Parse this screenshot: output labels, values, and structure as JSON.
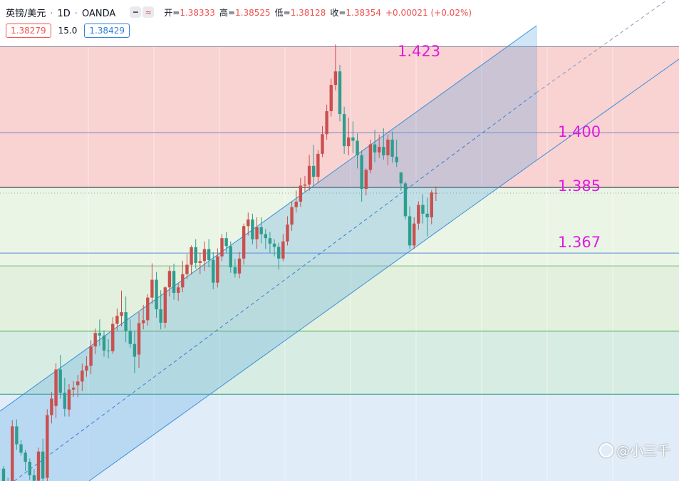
{
  "header": {
    "symbol": "英镑/美元",
    "sep1": "·",
    "timeframe": "1D",
    "sep2": "·",
    "broker": "OANDA",
    "open_label": "开=",
    "open": "1.38333",
    "high_label": "高=",
    "high": "1.38525",
    "low_label": "低=",
    "low": "1.38128",
    "close_label": "收=",
    "close": "1.38354",
    "change": "+0.00021 (+0.02%)"
  },
  "quote": {
    "bid": "1.38279",
    "spread": "15.0",
    "ask": "1.38429"
  },
  "levels": {
    "l1": "1.423",
    "l2": "1.400",
    "l3": "1.385",
    "l4": "1.367"
  },
  "watermark": "@小三千",
  "icons": {
    "minus": "minus-icon",
    "wave": "wave-icon",
    "logo": "watermark-logo-icon"
  },
  "colors": {
    "up": "#ef5350",
    "down": "#26a69a",
    "level_text": "#e01ae0",
    "channel": "#2f7fd8"
  },
  "chart_data": {
    "type": "candlestick",
    "ylim": [
      1.3,
      1.44
    ],
    "levels": [
      1.423,
      1.4,
      1.385,
      1.367
    ],
    "candles": [
      [
        1.3079,
        1.3086,
        1.3022,
        1.3035
      ],
      [
        1.3035,
        1.3054,
        1.2991,
        1.3012
      ],
      [
        1.3017,
        1.3212,
        1.3001,
        1.3195
      ],
      [
        1.3195,
        1.3214,
        1.3131,
        1.3146
      ],
      [
        1.3146,
        1.3158,
        1.3115,
        1.3123
      ],
      [
        1.3123,
        1.3131,
        1.3073,
        1.3098
      ],
      [
        1.3098,
        1.3107,
        1.3048,
        1.3061
      ],
      [
        1.3061,
        1.3078,
        1.3036,
        1.3046
      ],
      [
        1.3046,
        1.3137,
        1.3026,
        1.3126
      ],
      [
        1.3126,
        1.3161,
        1.3034,
        1.3052
      ],
      [
        1.3054,
        1.3242,
        1.3036,
        1.3226
      ],
      [
        1.3226,
        1.3289,
        1.3203,
        1.3271
      ],
      [
        1.3251,
        1.3368,
        1.3218,
        1.3351
      ],
      [
        1.3351,
        1.3391,
        1.3271,
        1.3287
      ],
      [
        1.3287,
        1.3328,
        1.3222,
        1.3243
      ],
      [
        1.3241,
        1.3311,
        1.3222,
        1.3296
      ],
      [
        1.3296,
        1.3319,
        1.3276,
        1.3301
      ],
      [
        1.3308,
        1.3336,
        1.3275,
        1.3318
      ],
      [
        1.3318,
        1.3367,
        1.3292,
        1.3348
      ],
      [
        1.3348,
        1.3387,
        1.3331,
        1.3361
      ],
      [
        1.3361,
        1.3431,
        1.3338,
        1.3414
      ],
      [
        1.3414,
        1.3463,
        1.3393,
        1.3451
      ],
      [
        1.3451,
        1.3488,
        1.3416,
        1.3444
      ],
      [
        1.3444,
        1.3458,
        1.3386,
        1.3403
      ],
      [
        1.3403,
        1.3434,
        1.3382,
        1.3401
      ],
      [
        1.3401,
        1.3494,
        1.3394,
        1.3476
      ],
      [
        1.3476,
        1.3518,
        1.3458,
        1.3498
      ],
      [
        1.3498,
        1.3567,
        1.3469,
        1.3508
      ],
      [
        1.3508,
        1.3551,
        1.3426,
        1.3457
      ],
      [
        1.3457,
        1.3488,
        1.3411,
        1.3421
      ],
      [
        1.3421,
        1.3456,
        1.3341,
        1.3386
      ],
      [
        1.3392,
        1.3508,
        1.3355,
        1.3478
      ],
      [
        1.3478,
        1.3528,
        1.3461,
        1.3486
      ],
      [
        1.3486,
        1.3557,
        1.3471,
        1.3548
      ],
      [
        1.3548,
        1.3642,
        1.3531,
        1.3597
      ],
      [
        1.3597,
        1.3618,
        1.3493,
        1.3516
      ],
      [
        1.3516,
        1.3568,
        1.3461,
        1.3479
      ],
      [
        1.3479,
        1.3579,
        1.3464,
        1.3576
      ],
      [
        1.3576,
        1.3634,
        1.3551,
        1.3621
      ],
      [
        1.3621,
        1.3641,
        1.3542,
        1.3561
      ],
      [
        1.3561,
        1.3588,
        1.3539,
        1.3576
      ],
      [
        1.3576,
        1.3649,
        1.3563,
        1.3612
      ],
      [
        1.3612,
        1.3667,
        1.3598,
        1.3638
      ],
      [
        1.3638,
        1.3691,
        1.3611,
        1.3686
      ],
      [
        1.3686,
        1.3708,
        1.3628,
        1.3643
      ],
      [
        1.3643,
        1.3671,
        1.3612,
        1.3648
      ],
      [
        1.3648,
        1.3702,
        1.3621,
        1.3681
      ],
      [
        1.3681,
        1.3708,
        1.3631,
        1.3651
      ],
      [
        1.3651,
        1.3673,
        1.3571,
        1.3589
      ],
      [
        1.3589,
        1.3683,
        1.3576,
        1.3661
      ],
      [
        1.3661,
        1.3722,
        1.3648,
        1.3711
      ],
      [
        1.3711,
        1.3728,
        1.3671,
        1.3689
      ],
      [
        1.3689,
        1.3702,
        1.3616,
        1.3631
      ],
      [
        1.3631,
        1.3654,
        1.3603,
        1.3614
      ],
      [
        1.3614,
        1.3673,
        1.3601,
        1.3655
      ],
      [
        1.3655,
        1.3751,
        1.3638,
        1.3744
      ],
      [
        1.3744,
        1.3781,
        1.3718,
        1.3762
      ],
      [
        1.3762,
        1.3778,
        1.3694,
        1.3708
      ],
      [
        1.3708,
        1.3768,
        1.3682,
        1.3741
      ],
      [
        1.3741,
        1.3768,
        1.3697,
        1.3722
      ],
      [
        1.3722,
        1.3736,
        1.3681,
        1.3711
      ],
      [
        1.3711,
        1.3728,
        1.3671,
        1.3696
      ],
      [
        1.3696,
        1.3708,
        1.3661,
        1.3687
      ],
      [
        1.3687,
        1.3698,
        1.3625,
        1.3655
      ],
      [
        1.3655,
        1.3722,
        1.3648,
        1.3702
      ],
      [
        1.3702,
        1.3771,
        1.3691,
        1.3748
      ],
      [
        1.3748,
        1.3812,
        1.3731,
        1.3796
      ],
      [
        1.3796,
        1.3842,
        1.3781,
        1.3811
      ],
      [
        1.3811,
        1.3876,
        1.3797,
        1.3855
      ],
      [
        1.3855,
        1.3881,
        1.3838,
        1.3858
      ],
      [
        1.3858,
        1.3939,
        1.3841,
        1.3909
      ],
      [
        1.3909,
        1.3967,
        1.3854,
        1.3879
      ],
      [
        1.3879,
        1.3952,
        1.3862,
        1.3942
      ],
      [
        1.3942,
        1.4018,
        1.3933,
        1.3996
      ],
      [
        1.3996,
        1.4077,
        1.3981,
        1.4059
      ],
      [
        1.4059,
        1.4148,
        1.4044,
        1.4131
      ],
      [
        1.4131,
        1.4242,
        1.4116,
        1.4168
      ],
      [
        1.4168,
        1.4186,
        1.4031,
        1.4051
      ],
      [
        1.4051,
        1.4071,
        1.3942,
        1.3963
      ],
      [
        1.3963,
        1.4041,
        1.3938,
        1.3987
      ],
      [
        1.3987,
        1.4031,
        1.3944,
        1.3978
      ],
      [
        1.3978,
        1.3998,
        1.3902,
        1.3938
      ],
      [
        1.3938,
        1.3951,
        1.3811,
        1.3846
      ],
      [
        1.3846,
        1.3902,
        1.3828,
        1.3898
      ],
      [
        1.3898,
        1.3981,
        1.3889,
        1.3968
      ],
      [
        1.3968,
        1.4008,
        1.3919,
        1.3946
      ],
      [
        1.3946,
        1.3995,
        1.3931,
        1.3961
      ],
      [
        1.3961,
        1.4012,
        1.3926,
        1.3938
      ],
      [
        1.3938,
        1.3995,
        1.3911,
        1.3981
      ],
      [
        1.3981,
        1.4003,
        1.3918,
        1.3934
      ],
      [
        1.3934,
        1.3981,
        1.3906,
        1.3919
      ],
      [
        1.3891,
        1.3892,
        1.3841,
        1.3861
      ],
      [
        1.3861,
        1.3866,
        1.3762,
        1.3771
      ],
      [
        1.3771,
        1.3798,
        1.3681,
        1.3691
      ],
      [
        1.3691,
        1.3768,
        1.3681,
        1.3751
      ],
      [
        1.3751,
        1.3812,
        1.3734,
        1.3802
      ],
      [
        1.3802,
        1.3831,
        1.3751,
        1.3778
      ],
      [
        1.3778,
        1.3822,
        1.3716,
        1.3768
      ],
      [
        1.3768,
        1.3843,
        1.3749,
        1.3836
      ],
      [
        1.3833,
        1.3853,
        1.3813,
        1.3835
      ]
    ]
  }
}
